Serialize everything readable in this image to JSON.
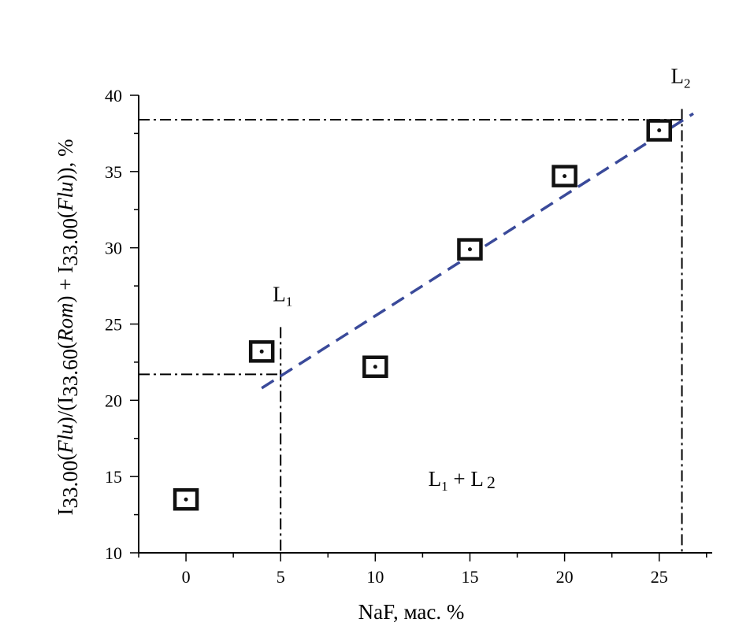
{
  "chart_data": {
    "type": "scatter",
    "xlabel": "NaF, мас. %",
    "ylabel": {
      "parts": [
        {
          "t": "I",
          "i": false,
          "s": false
        },
        {
          "t": "33.00",
          "i": false,
          "s": true
        },
        {
          "t": "(",
          "i": false,
          "s": false
        },
        {
          "t": "Flu",
          "i": true,
          "s": false
        },
        {
          "t": ")/(I",
          "i": false,
          "s": false
        },
        {
          "t": "33.60",
          "i": false,
          "s": true
        },
        {
          "t": "(",
          "i": false,
          "s": false
        },
        {
          "t": "Rom",
          "i": true,
          "s": false
        },
        {
          "t": ") + I",
          "i": false,
          "s": false
        },
        {
          "t": "33.00",
          "i": false,
          "s": true
        },
        {
          "t": "(",
          "i": false,
          "s": false
        },
        {
          "t": "Flu",
          "i": true,
          "s": false
        },
        {
          "t": ")), %",
          "i": false,
          "s": false
        }
      ]
    },
    "xlim": [
      -2.5,
      27.8
    ],
    "ylim": [
      10,
      40
    ],
    "xticks": [
      0,
      5,
      10,
      15,
      20,
      25
    ],
    "yticks": [
      10,
      15,
      20,
      25,
      30,
      35,
      40
    ],
    "points": [
      {
        "x": 0,
        "y": 13.5
      },
      {
        "x": 4,
        "y": 23.2
      },
      {
        "x": 10,
        "y": 22.2
      },
      {
        "x": 15,
        "y": 29.9
      },
      {
        "x": 20,
        "y": 34.7
      },
      {
        "x": 25,
        "y": 37.7
      }
    ],
    "fit_line": {
      "x1": 4,
      "y1": 20.8,
      "x2": 26.8,
      "y2": 38.8,
      "color": "#3a4a9a"
    },
    "guides": {
      "L1_x": 5,
      "L2_x": 26.2,
      "h_low_y": 21.7,
      "h_high_y": 38.4
    },
    "annotations": {
      "l1": {
        "base": "L",
        "sub": "1",
        "x": 5,
        "y": 26.5
      },
      "l2": {
        "base": "L",
        "sub": "2",
        "x": 26.2,
        "y": 40.8
      },
      "region": {
        "a": "L",
        "a_sub": "1",
        "plus": " + L",
        "b_sub": "2",
        "x": 12.8,
        "y": 14.4
      }
    }
  }
}
